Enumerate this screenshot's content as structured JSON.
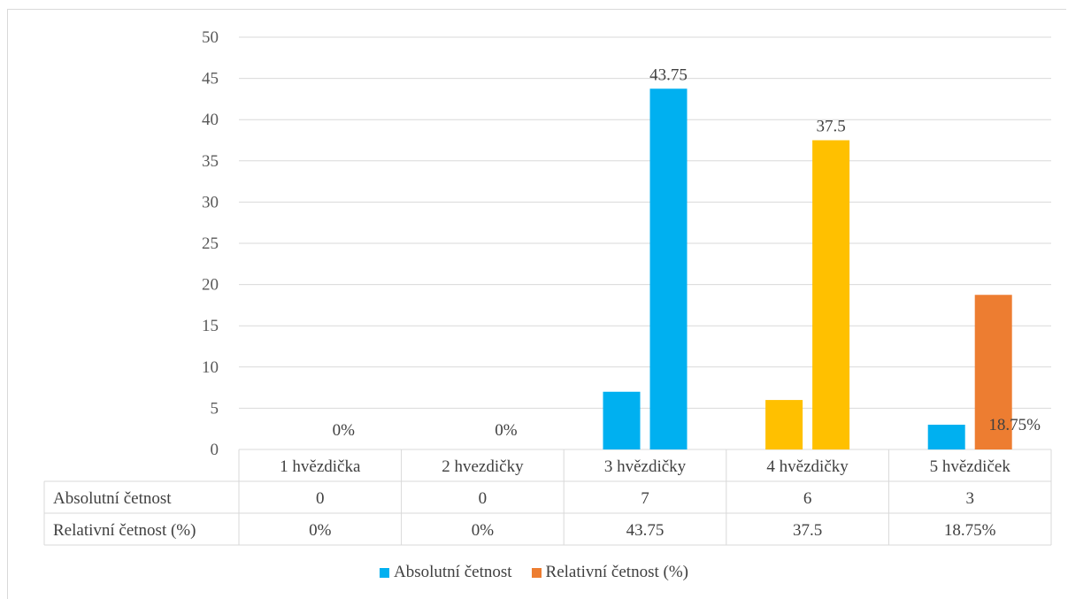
{
  "chart_data": {
    "type": "bar",
    "categories": [
      "1 hvězdička",
      "2 hvezdičky",
      "3 hvězdičky",
      "4 hvězdičky",
      "5 hvězdiček"
    ],
    "series": [
      {
        "name": "Absolutní četnost",
        "values": [
          0,
          0,
          7,
          6,
          3
        ],
        "table_labels": [
          "0",
          "0",
          "7",
          "6",
          "3"
        ]
      },
      {
        "name": "Relativní četnost (%)",
        "values": [
          0,
          0,
          43.75,
          37.5,
          18.75
        ],
        "table_labels": [
          "0%",
          "0%",
          "43.75",
          "37.5",
          "18.75%"
        ],
        "data_labels": [
          "0%",
          "0%",
          "43.75",
          "37.5",
          "18.75%"
        ]
      }
    ],
    "point_colors": [
      "#00b0f0",
      "#00b0f0",
      "#00b0f0",
      "#ffc000",
      "#00b0f0"
    ],
    "legend_colors": [
      "#00b0f0",
      "#ed7d31"
    ],
    "series2_point_colors": [
      "#00b0f0",
      "#00b0f0",
      "#00b0f0",
      "#ffc000",
      "#ed7d31"
    ],
    "ylim": [
      0,
      50
    ],
    "yticks": [
      "0",
      "5",
      "10",
      "15",
      "20",
      "25",
      "30",
      "35",
      "40",
      "45",
      "50"
    ],
    "grid": true,
    "data_table": true,
    "legend_position": "bottom"
  }
}
